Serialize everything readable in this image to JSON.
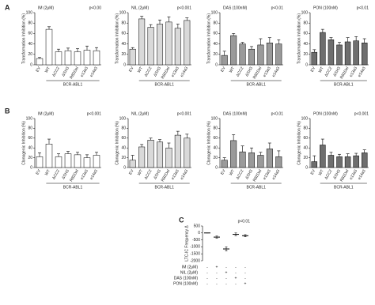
{
  "panel_labels": [
    "A",
    "B",
    "C"
  ],
  "chart_data": [
    {
      "type": "bar",
      "title": "IM (2μM)",
      "annotation": "p<0.00",
      "ylabel": "Transformation Inhibition (%)",
      "group_label": "BCR-ABL1",
      "categories": [
        "EV",
        "WT",
        "ΔCC2",
        "ΔSH3",
        "R82Del",
        "e13a3",
        "e14a3"
      ],
      "values": [
        12,
        68,
        25,
        27,
        25,
        28,
        27
      ],
      "errors": [
        2,
        5,
        5,
        5,
        6,
        8,
        6
      ],
      "color": "#ffffff",
      "ylim": [
        0,
        100
      ],
      "yticks": [
        0,
        20,
        40,
        60,
        80,
        100
      ]
    },
    {
      "type": "bar",
      "title": "NIL (2μM)",
      "annotation": "p<0.001",
      "ylabel": "Transformation Inhibition (%)",
      "group_label": "BCR-ABL1",
      "categories": [
        "EV",
        "WT",
        "ΔCC2",
        "ΔSH3",
        "R82Del",
        "e13a3",
        "e14a3"
      ],
      "values": [
        30,
        88,
        72,
        78,
        82,
        70,
        85
      ],
      "errors": [
        3,
        5,
        5,
        8,
        10,
        8,
        5
      ],
      "color": "#d9d9d9",
      "ylim": [
        0,
        100
      ],
      "yticks": [
        0,
        20,
        40,
        60,
        80,
        100
      ]
    },
    {
      "type": "bar",
      "title": "DAS (100nM)",
      "annotation": "p<0.01",
      "ylabel": "Transformation Inhibition (%)",
      "group_label": "BCR-ABL1",
      "categories": [
        "EV",
        "WT",
        "ΔCC2",
        "ΔSH3",
        "R82Del",
        "e13a3",
        "e14a3"
      ],
      "values": [
        18,
        56,
        40,
        30,
        38,
        42,
        40
      ],
      "errors": [
        8,
        4,
        3,
        5,
        12,
        10,
        8
      ],
      "color": "#9a9a9a",
      "ylim": [
        0,
        100
      ],
      "yticks": [
        0,
        20,
        40,
        60,
        80,
        100
      ]
    },
    {
      "type": "bar",
      "title": "PON (100nM)",
      "annotation": "p<0.01",
      "ylabel": "Transformation Inhibition (%)",
      "group_label": "BCR-ABL1",
      "categories": [
        "EV",
        "WT",
        "ΔCC2",
        "ΔSH3",
        "R82Del",
        "e13a3",
        "e14a3"
      ],
      "values": [
        24,
        62,
        48,
        38,
        44,
        46,
        42
      ],
      "errors": [
        5,
        6,
        4,
        5,
        8,
        8,
        8
      ],
      "color": "#6e6e6e",
      "ylim": [
        0,
        100
      ],
      "yticks": [
        0,
        20,
        40,
        60,
        80,
        100
      ]
    },
    {
      "type": "bar",
      "title": "IM (2μM)",
      "annotation": "p<0.001",
      "ylabel": "Clonogenic Inhibition (%)",
      "group_label": "BCR-ABL1",
      "categories": [
        "EV",
        "WT",
        "ΔCC2",
        "ΔSH3",
        "R82Del",
        "e13a3",
        "e14a3"
      ],
      "values": [
        22,
        48,
        22,
        28,
        26,
        20,
        25
      ],
      "errors": [
        8,
        10,
        6,
        5,
        5,
        6,
        6
      ],
      "color": "#ffffff",
      "ylim": [
        0,
        100
      ],
      "yticks": [
        0,
        20,
        40,
        60,
        80,
        100
      ]
    },
    {
      "type": "bar",
      "title": "NIL (2μM)",
      "annotation": "p<0.001",
      "ylabel": "Clonogenic Inhibition (%)",
      "group_label": "BCR-ABL1",
      "categories": [
        "EV",
        "WT",
        "ΔCC2",
        "ΔSH3",
        "R82Del",
        "e13a3",
        "e14a3"
      ],
      "values": [
        15,
        42,
        56,
        52,
        40,
        66,
        60
      ],
      "errors": [
        10,
        5,
        4,
        5,
        10,
        8,
        8
      ],
      "color": "#d9d9d9",
      "ylim": [
        0,
        100
      ],
      "yticks": [
        0,
        20,
        40,
        60,
        80,
        100
      ]
    },
    {
      "type": "bar",
      "title": "DAS (100nM)",
      "annotation": "p<0.01",
      "ylabel": "Clonogenic Inhibition (%)",
      "group_label": "BCR-ABL1",
      "categories": [
        "EV",
        "WT",
        "ΔCC2",
        "ΔSH3",
        "R82Del",
        "e13a3",
        "e14a3"
      ],
      "values": [
        15,
        55,
        32,
        30,
        25,
        38,
        22
      ],
      "errors": [
        5,
        12,
        12,
        10,
        6,
        12,
        12
      ],
      "color": "#9a9a9a",
      "ylim": [
        0,
        100
      ],
      "yticks": [
        0,
        20,
        40,
        60,
        80,
        100
      ]
    },
    {
      "type": "bar",
      "title": "PON (100nM)",
      "annotation": "p<0.001",
      "ylabel": "Clonogenic Inhibition (%)",
      "group_label": "BCR-ABL1",
      "categories": [
        "EV",
        "WT",
        "ΔCC2",
        "ΔSH3",
        "R82Del",
        "e13a3",
        "e14a3"
      ],
      "values": [
        12,
        46,
        25,
        22,
        22,
        24,
        30
      ],
      "errors": [
        12,
        12,
        6,
        5,
        6,
        5,
        6
      ],
      "color": "#6e6e6e",
      "ylim": [
        0,
        100
      ],
      "yticks": [
        0,
        20,
        40,
        60,
        80,
        100
      ]
    },
    {
      "type": "errorbar",
      "annotation": "p<0.01",
      "ylabel": "LTC-IC Frequency Δ",
      "categories": [
        null,
        null,
        null,
        null,
        null
      ],
      "values": [
        0,
        -300,
        -1150,
        -100,
        -200
      ],
      "errors": [
        0,
        80,
        150,
        100,
        80
      ],
      "color": "#000000",
      "ylim": [
        -2000,
        500
      ],
      "yticks": [
        500,
        0,
        -500,
        -1000,
        -1500,
        -2000
      ],
      "rows": [
        {
          "label": "IM (2μM)",
          "signs": [
            "-",
            "+",
            "-",
            "-",
            "-"
          ]
        },
        {
          "label": "NIL (2μM)",
          "signs": [
            "-",
            "-",
            "+",
            "-",
            "-"
          ]
        },
        {
          "label": "DAS (100nM)",
          "signs": [
            "-",
            "-",
            "-",
            "+",
            "-"
          ]
        },
        {
          "label": "PON (100nM)",
          "signs": [
            "-",
            "-",
            "-",
            "-",
            "+"
          ]
        }
      ]
    }
  ]
}
